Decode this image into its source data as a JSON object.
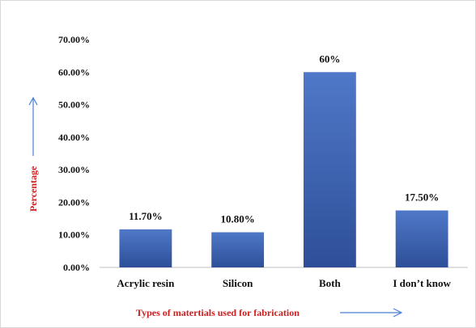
{
  "chart_data": {
    "type": "bar",
    "categories": [
      "Acrylic resin",
      "Silicon",
      "Both",
      "I don’t know"
    ],
    "values": [
      11.7,
      10.8,
      60,
      17.5
    ],
    "data_labels": [
      "11.70%",
      "10.80%",
      "60%",
      "17.50%"
    ],
    "title": "",
    "xlabel": "Types of matertials used for fabrication",
    "ylabel": "Percentage",
    "ylim": [
      0,
      70
    ],
    "yticks": [
      "0.00%",
      "10.00%",
      "20.00%",
      "30.00%",
      "40.00%",
      "50.00%",
      "60.00%",
      "70.00%"
    ],
    "grid": false,
    "legend": "none",
    "colors": {
      "bar_top": "#4f78c8",
      "bar_bottom": "#2e4f98",
      "axis_title": "#cc1f1f",
      "arrow": "#4a7fd4"
    }
  }
}
